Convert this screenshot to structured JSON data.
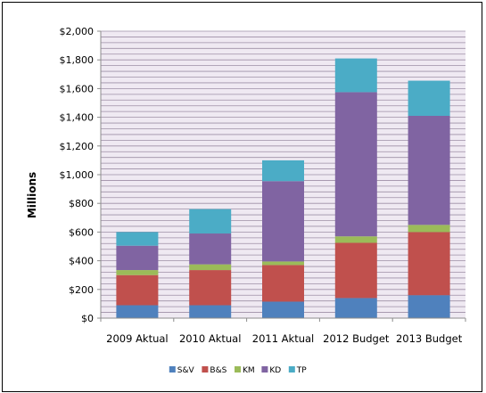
{
  "chart_data": {
    "type": "bar",
    "stacked": true,
    "categories": [
      "2009 Aktual",
      "2010 Aktual",
      "2011 Aktual",
      "2012 Budget",
      "2013 Budget"
    ],
    "series": [
      {
        "name": "S&V",
        "color": "#4f81bd",
        "values": [
          90,
          90,
          115,
          140,
          160
        ]
      },
      {
        "name": "B&S",
        "color": "#c0504d",
        "values": [
          210,
          245,
          255,
          385,
          440
        ]
      },
      {
        "name": "KM",
        "color": "#9bbb59",
        "values": [
          35,
          40,
          25,
          45,
          50
        ]
      },
      {
        "name": "KD",
        "color": "#8064a2",
        "values": [
          170,
          215,
          560,
          1005,
          760
        ]
      },
      {
        "name": "TP",
        "color": "#4bacc6",
        "values": [
          95,
          170,
          145,
          235,
          245
        ]
      }
    ],
    "ylabel": "Millions",
    "ylim": [
      0,
      2000
    ],
    "yticks": [
      0,
      200,
      400,
      600,
      800,
      1000,
      1200,
      1400,
      1600,
      1800,
      2000
    ],
    "ytick_labels": [
      "$0",
      "$200",
      "$400",
      "$600",
      "$800",
      "$1,000",
      "$1,200",
      "$1,400",
      "$1,600",
      "$1,800",
      "$2,000"
    ],
    "minor_gridlines_per_major": 4,
    "gridline_color": "#9e8fa6",
    "plot_background": "#efe9f2",
    "legend_position": "bottom",
    "grid": true
  }
}
